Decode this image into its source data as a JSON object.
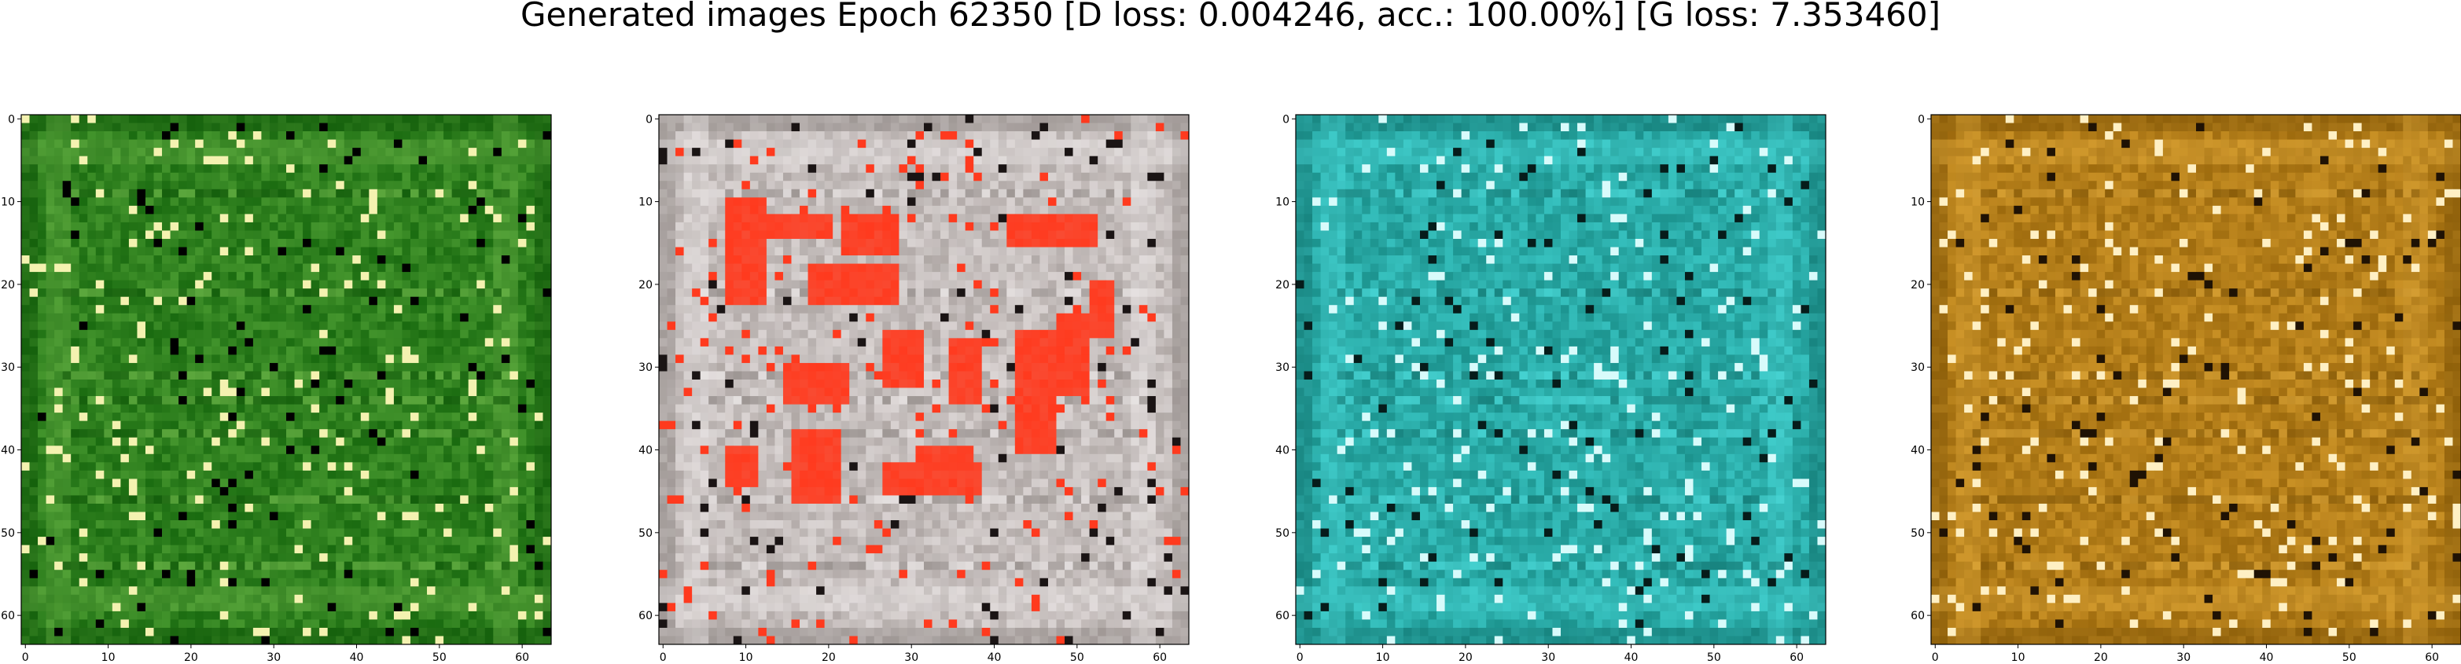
{
  "title": "Generated images Epoch 62350 [D loss: 0.004246, acc.: 100.00%] [G loss: 7.353460]",
  "chart_data": [
    {
      "type": "heatmap",
      "image_size": 64,
      "xlim": [
        0,
        63
      ],
      "ylim": [
        63,
        0
      ],
      "x_ticks": [
        0,
        10,
        20,
        30,
        40,
        50,
        60
      ],
      "y_ticks": [
        0,
        10,
        20,
        30,
        40,
        50,
        60
      ],
      "palette": {
        "base": "#1c7a12",
        "dark": "#0f5508",
        "light": "#6fb64a",
        "highlight": "#f4f2b0",
        "accent": "#000000"
      }
    },
    {
      "type": "heatmap",
      "image_size": 64,
      "xlim": [
        0,
        63
      ],
      "ylim": [
        63,
        0
      ],
      "x_ticks": [
        0,
        10,
        20,
        30,
        40,
        50,
        60
      ],
      "y_ticks": [
        0,
        10,
        20,
        30,
        40,
        50,
        60
      ],
      "palette": {
        "base": "#cfc6c4",
        "dark": "#8d8683",
        "light": "#ece8e8",
        "highlight": "#ff3a1e",
        "accent": "#1a1414"
      }
    },
    {
      "type": "heatmap",
      "image_size": 64,
      "xlim": [
        0,
        63
      ],
      "ylim": [
        63,
        0
      ],
      "x_ticks": [
        0,
        10,
        20,
        30,
        40,
        50,
        60
      ],
      "y_ticks": [
        0,
        10,
        20,
        30,
        40,
        50,
        60
      ],
      "palette": {
        "base": "#1fa9a4",
        "dark": "#137570",
        "light": "#4fdede",
        "highlight": "#d8fbfb",
        "accent": "#061c1a"
      }
    },
    {
      "type": "heatmap",
      "image_size": 64,
      "xlim": [
        0,
        63
      ],
      "ylim": [
        63,
        0
      ],
      "x_ticks": [
        0,
        10,
        20,
        30,
        40,
        50,
        60
      ],
      "y_ticks": [
        0,
        10,
        20,
        30,
        40,
        50,
        60
      ],
      "palette": {
        "base": "#b87c10",
        "dark": "#7d5306",
        "light": "#e0a93b",
        "highlight": "#fff0c4",
        "accent": "#1f1204"
      }
    }
  ]
}
